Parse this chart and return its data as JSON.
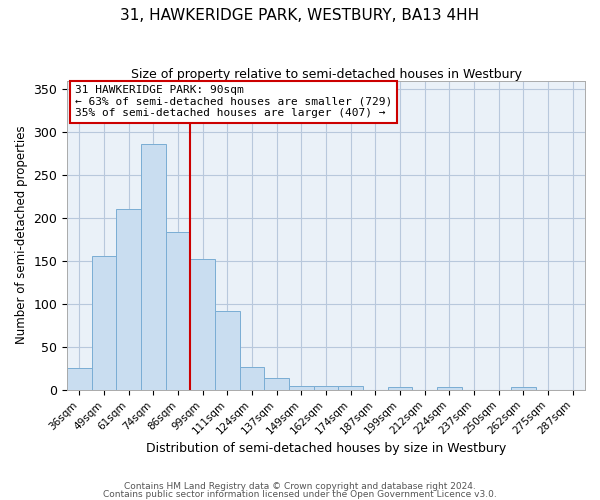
{
  "title": "31, HAWKERIDGE PARK, WESTBURY, BA13 4HH",
  "subtitle": "Size of property relative to semi-detached houses in Westbury",
  "xlabel": "Distribution of semi-detached houses by size in Westbury",
  "ylabel": "Number of semi-detached properties",
  "bar_labels": [
    "36sqm",
    "49sqm",
    "61sqm",
    "74sqm",
    "86sqm",
    "99sqm",
    "111sqm",
    "124sqm",
    "137sqm",
    "149sqm",
    "162sqm",
    "174sqm",
    "187sqm",
    "199sqm",
    "212sqm",
    "224sqm",
    "237sqm",
    "250sqm",
    "262sqm",
    "275sqm",
    "287sqm"
  ],
  "bar_heights": [
    25,
    156,
    210,
    286,
    184,
    152,
    92,
    27,
    14,
    5,
    5,
    5,
    0,
    3,
    0,
    3,
    0,
    0,
    3,
    0,
    0
  ],
  "bar_color": "#c9ddf0",
  "bar_edge_color": "#7aadd4",
  "ylim": [
    0,
    360
  ],
  "yticks": [
    0,
    50,
    100,
    150,
    200,
    250,
    300,
    350
  ],
  "vline_x": 4.5,
  "vline_color": "#cc0000",
  "annotation_title": "31 HAWKERIDGE PARK: 90sqm",
  "annotation_line1": "← 63% of semi-detached houses are smaller (729)",
  "annotation_line2": "35% of semi-detached houses are larger (407) →",
  "annotation_box_color": "#ffffff",
  "annotation_box_edge": "#cc0000",
  "footer1": "Contains HM Land Registry data © Crown copyright and database right 2024.",
  "footer2": "Contains public sector information licensed under the Open Government Licence v3.0.",
  "background_color": "#ffffff",
  "axes_bg_color": "#eaf1f8",
  "grid_color": "#b8c8dc"
}
